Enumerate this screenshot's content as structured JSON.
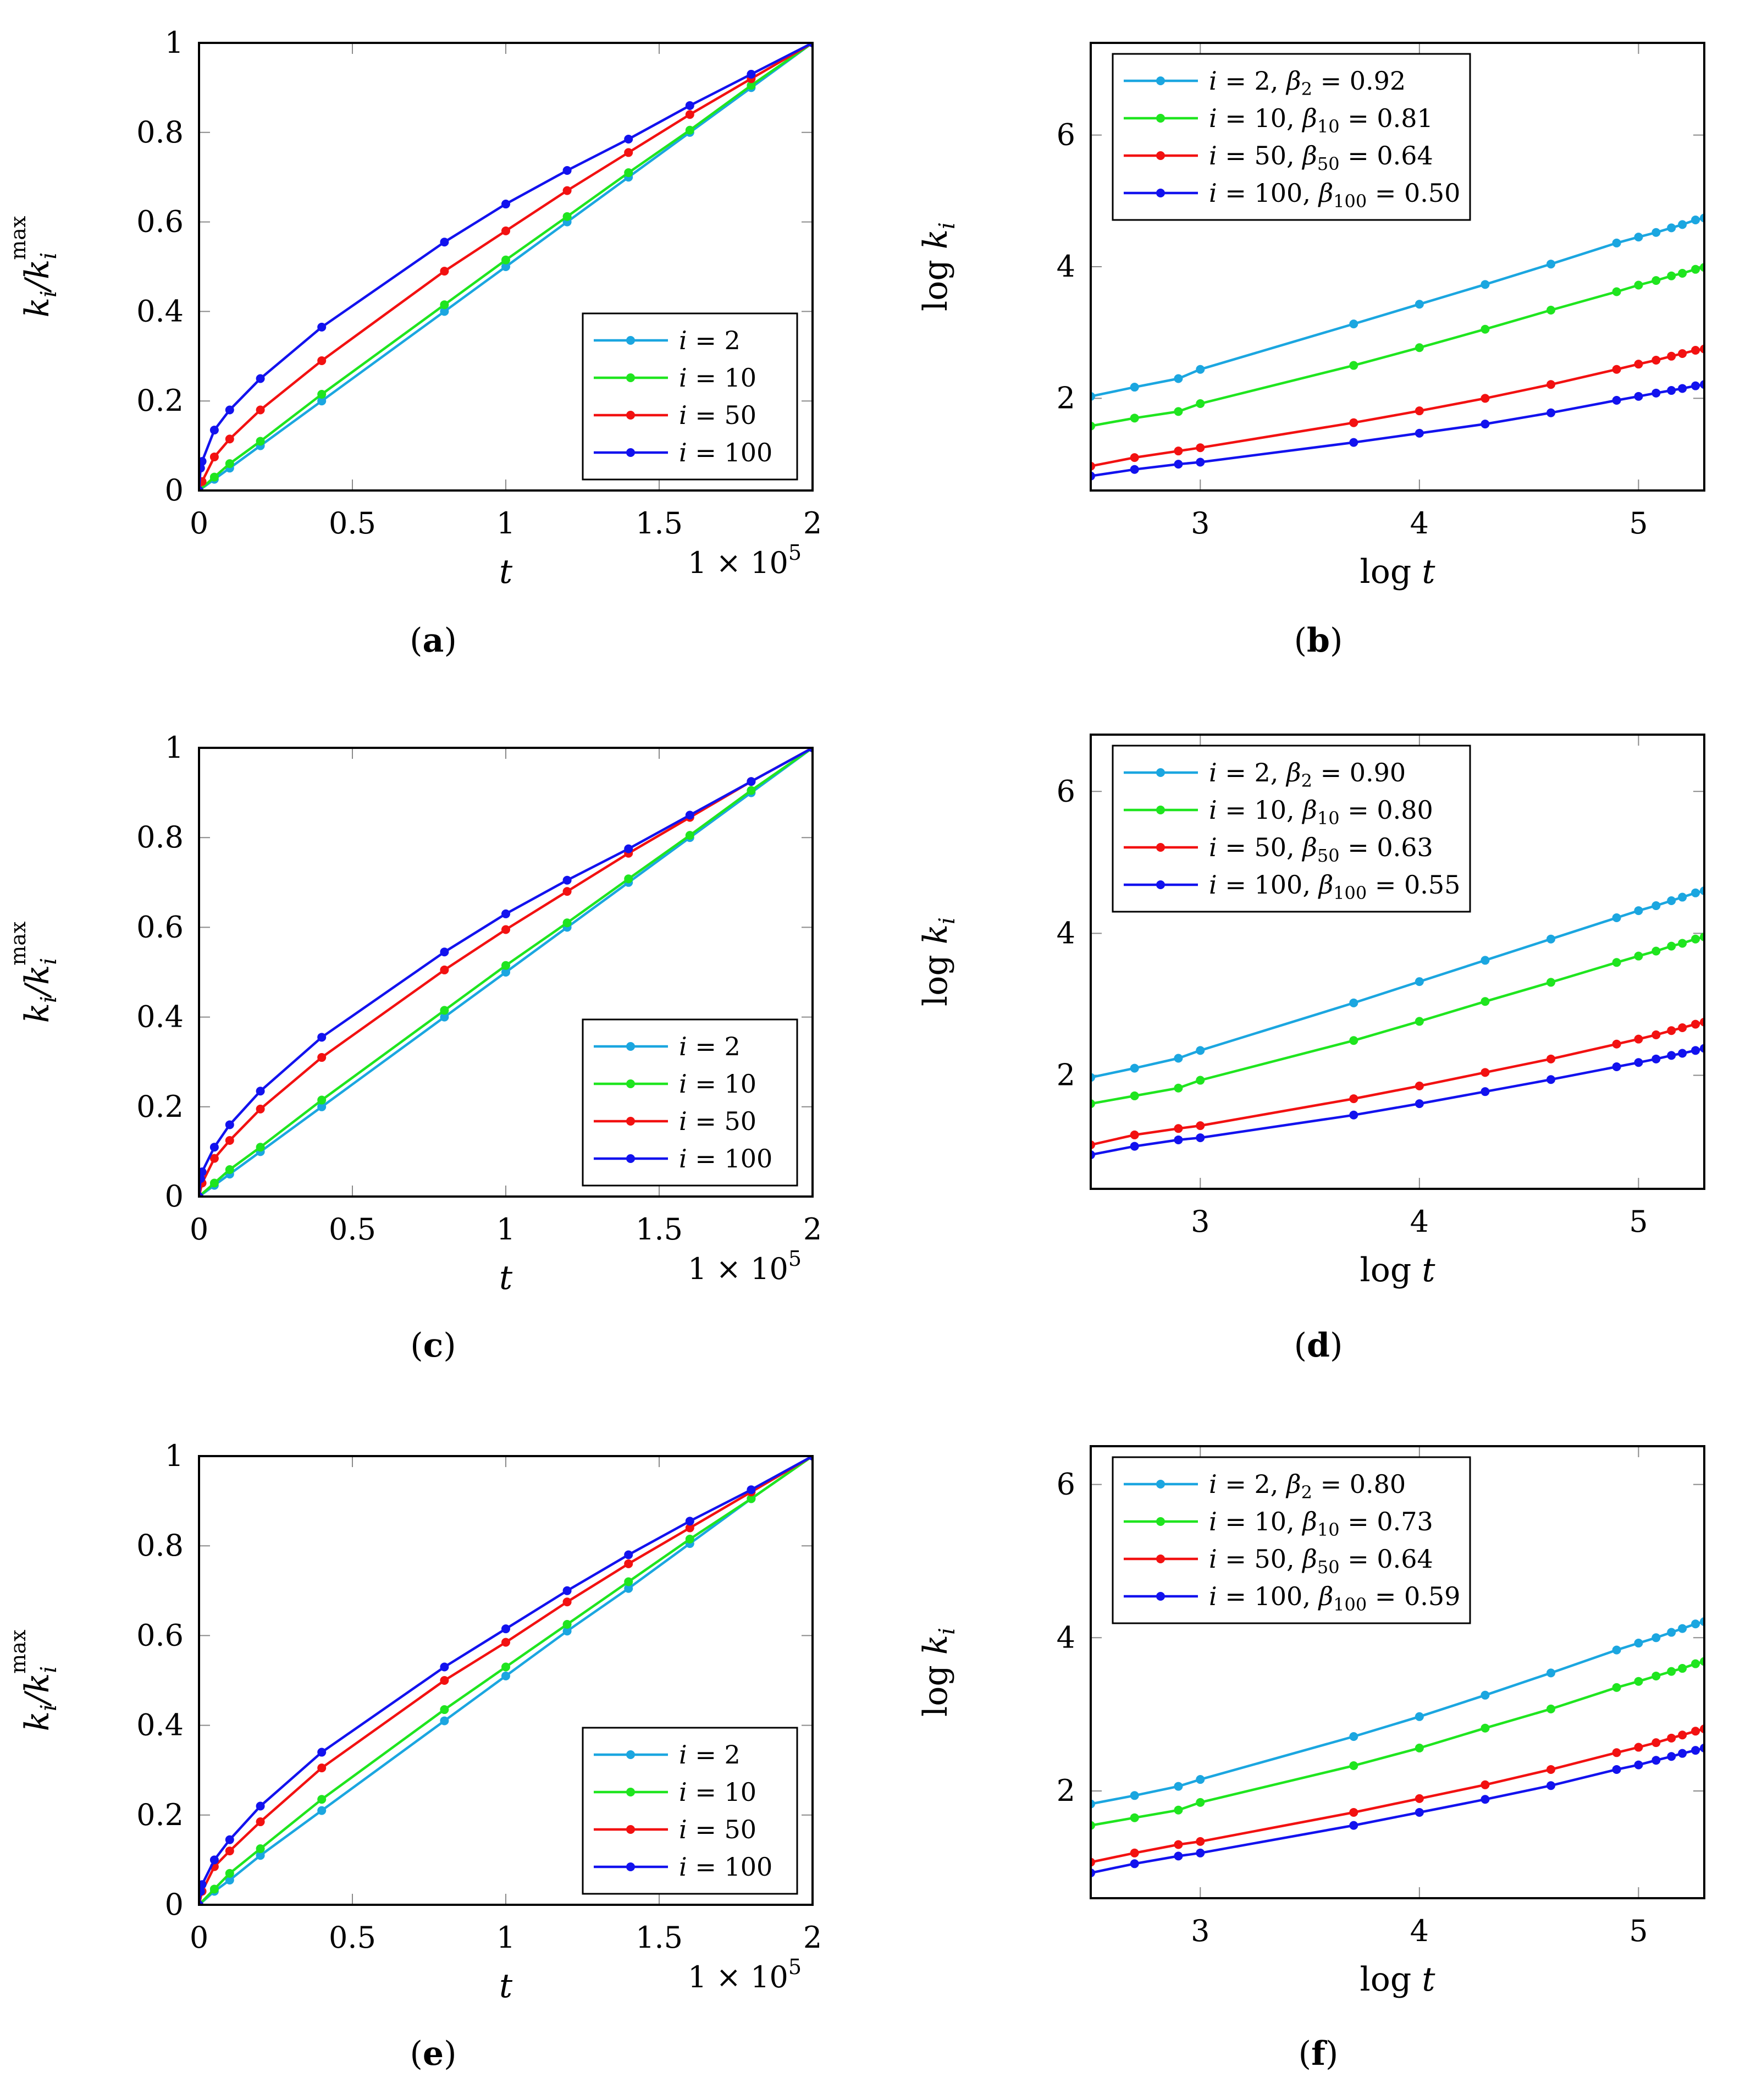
{
  "colors": {
    "i2": "#1ba6e0",
    "i10": "#1fe51f",
    "i50": "#f21111",
    "i100": "#1212ee"
  },
  "chart_data": [
    {
      "id": "a",
      "type": "line",
      "caption": "(a)",
      "xlabel": "t",
      "ylabel": "k_i/k_i^max",
      "sci_note": "1 × 10^5",
      "xlim": [
        0,
        2
      ],
      "ylim": [
        0,
        1
      ],
      "xticks": [
        0,
        0.5,
        1,
        1.5,
        2
      ],
      "xtick_labels": [
        "0",
        "0.5",
        "1",
        "1.5",
        "2"
      ],
      "yticks": [
        0,
        0.2,
        0.4,
        0.6,
        0.8,
        1
      ],
      "ytick_labels": [
        "0",
        "0.2",
        "0.4",
        "0.6",
        "0.8",
        "1"
      ],
      "legend_position": "lower-right",
      "series": [
        {
          "name": "i = 2",
          "color_key": "i2",
          "x": [
            0,
            0.05,
            0.1,
            0.2,
            0.4,
            0.8,
            1.0,
            1.2,
            1.4,
            1.6,
            1.8,
            2.0
          ],
          "y": [
            0,
            0.025,
            0.05,
            0.1,
            0.2,
            0.4,
            0.5,
            0.6,
            0.7,
            0.8,
            0.9,
            1.0
          ]
        },
        {
          "name": "i = 10",
          "color_key": "i10",
          "x": [
            0,
            0.05,
            0.1,
            0.2,
            0.4,
            0.8,
            1.0,
            1.2,
            1.4,
            1.6,
            1.8,
            2.0
          ],
          "y": [
            0,
            0.03,
            0.06,
            0.11,
            0.215,
            0.415,
            0.515,
            0.612,
            0.71,
            0.805,
            0.905,
            1.0
          ]
        },
        {
          "name": "i = 50",
          "color_key": "i50",
          "x": [
            0,
            0.01,
            0.05,
            0.1,
            0.2,
            0.4,
            0.8,
            1.0,
            1.2,
            1.4,
            1.6,
            1.8,
            2.0
          ],
          "y": [
            0,
            0.02,
            0.075,
            0.115,
            0.18,
            0.29,
            0.49,
            0.58,
            0.67,
            0.755,
            0.84,
            0.92,
            1.0
          ]
        },
        {
          "name": "i = 100",
          "color_key": "i100",
          "x": [
            0,
            0.005,
            0.01,
            0.05,
            0.1,
            0.2,
            0.4,
            0.8,
            1.0,
            1.2,
            1.4,
            1.6,
            1.8,
            2.0
          ],
          "y": [
            0,
            0.05,
            0.065,
            0.135,
            0.18,
            0.25,
            0.365,
            0.555,
            0.64,
            0.715,
            0.785,
            0.86,
            0.93,
            1.0
          ]
        }
      ]
    },
    {
      "id": "b",
      "type": "line",
      "caption": "(b)",
      "xlabel": "log t",
      "ylabel": "log k_i",
      "xlim": [
        2.5,
        5.3
      ],
      "ylim": [
        0.6,
        7.4
      ],
      "xticks": [
        3,
        4,
        5
      ],
      "xtick_labels": [
        "3",
        "4",
        "5"
      ],
      "yticks": [
        2,
        4,
        6
      ],
      "ytick_labels": [
        "2",
        "4",
        "6"
      ],
      "legend_position": "top-left",
      "series": [
        {
          "name": "i = 2, β2 = 0.92",
          "color_key": "i2",
          "x": [
            2.5,
            2.7,
            2.9,
            3.0,
            3.7,
            4.0,
            4.3,
            4.6,
            4.9,
            5.0,
            5.08,
            5.15,
            5.2,
            5.26,
            5.3
          ],
          "y": [
            2.03,
            2.17,
            2.3,
            2.44,
            3.13,
            3.43,
            3.73,
            4.04,
            4.36,
            4.45,
            4.52,
            4.59,
            4.64,
            4.71,
            4.74
          ]
        },
        {
          "name": "i = 10, β10 = 0.81",
          "color_key": "i10",
          "x": [
            2.5,
            2.7,
            2.9,
            3.0,
            3.7,
            4.0,
            4.3,
            4.6,
            4.9,
            5.0,
            5.08,
            5.15,
            5.2,
            5.26,
            5.3
          ],
          "y": [
            1.58,
            1.7,
            1.8,
            1.92,
            2.5,
            2.77,
            3.05,
            3.34,
            3.62,
            3.72,
            3.79,
            3.86,
            3.9,
            3.96,
            3.99
          ]
        },
        {
          "name": "i = 50, β50 = 0.64",
          "color_key": "i50",
          "x": [
            2.5,
            2.7,
            2.9,
            3.0,
            3.7,
            4.0,
            4.3,
            4.6,
            4.9,
            5.0,
            5.08,
            5.15,
            5.2,
            5.26,
            5.3
          ],
          "y": [
            0.97,
            1.1,
            1.2,
            1.25,
            1.63,
            1.81,
            2.0,
            2.21,
            2.44,
            2.52,
            2.58,
            2.64,
            2.68,
            2.73,
            2.75
          ]
        },
        {
          "name": "i = 100, β100 = 0.50",
          "color_key": "i100",
          "x": [
            2.5,
            2.7,
            2.9,
            3.0,
            3.7,
            4.0,
            4.3,
            4.6,
            4.9,
            5.0,
            5.08,
            5.15,
            5.2,
            5.26,
            5.3
          ],
          "y": [
            0.82,
            0.92,
            1.0,
            1.03,
            1.33,
            1.47,
            1.61,
            1.78,
            1.97,
            2.03,
            2.08,
            2.12,
            2.15,
            2.19,
            2.21
          ]
        }
      ]
    },
    {
      "id": "c",
      "type": "line",
      "caption": "(c)",
      "xlabel": "t",
      "ylabel": "k_i/k_i^max",
      "sci_note": "1 × 10^5",
      "xlim": [
        0,
        2
      ],
      "ylim": [
        0,
        1
      ],
      "xticks": [
        0,
        0.5,
        1,
        1.5,
        2
      ],
      "xtick_labels": [
        "0",
        "0.5",
        "1",
        "1.5",
        "2"
      ],
      "yticks": [
        0,
        0.2,
        0.4,
        0.6,
        0.8,
        1
      ],
      "ytick_labels": [
        "0",
        "0.2",
        "0.4",
        "0.6",
        "0.8",
        "1"
      ],
      "legend_position": "lower-right",
      "series": [
        {
          "name": "i = 2",
          "color_key": "i2",
          "x": [
            0,
            0.05,
            0.1,
            0.2,
            0.4,
            0.8,
            1.0,
            1.2,
            1.4,
            1.6,
            1.8,
            2.0
          ],
          "y": [
            0,
            0.025,
            0.05,
            0.1,
            0.2,
            0.4,
            0.5,
            0.6,
            0.7,
            0.8,
            0.9,
            1.0
          ]
        },
        {
          "name": "i = 10",
          "color_key": "i10",
          "x": [
            0,
            0.05,
            0.1,
            0.2,
            0.4,
            0.8,
            1.0,
            1.2,
            1.4,
            1.6,
            1.8,
            2.0
          ],
          "y": [
            0,
            0.03,
            0.06,
            0.11,
            0.215,
            0.415,
            0.515,
            0.61,
            0.708,
            0.805,
            0.905,
            1.0
          ]
        },
        {
          "name": "i = 50",
          "color_key": "i50",
          "x": [
            0,
            0.01,
            0.05,
            0.1,
            0.2,
            0.4,
            0.8,
            1.0,
            1.2,
            1.4,
            1.6,
            1.8,
            2.0
          ],
          "y": [
            0,
            0.03,
            0.085,
            0.125,
            0.195,
            0.31,
            0.505,
            0.595,
            0.68,
            0.765,
            0.845,
            0.925,
            1.0
          ]
        },
        {
          "name": "i = 100",
          "color_key": "i100",
          "x": [
            0,
            0.005,
            0.01,
            0.05,
            0.1,
            0.2,
            0.4,
            0.8,
            1.0,
            1.2,
            1.4,
            1.6,
            1.8,
            2.0
          ],
          "y": [
            0,
            0.04,
            0.055,
            0.11,
            0.16,
            0.235,
            0.355,
            0.545,
            0.63,
            0.705,
            0.775,
            0.85,
            0.925,
            1.0
          ]
        }
      ]
    },
    {
      "id": "d",
      "type": "line",
      "caption": "(d)",
      "xlabel": "log t",
      "ylabel": "log k_i",
      "xlim": [
        2.5,
        5.3
      ],
      "ylim": [
        0.4,
        6.8
      ],
      "xticks": [
        3,
        4,
        5
      ],
      "xtick_labels": [
        "3",
        "4",
        "5"
      ],
      "yticks": [
        2,
        4,
        6
      ],
      "ytick_labels": [
        "2",
        "4",
        "6"
      ],
      "legend_position": "top-left",
      "series": [
        {
          "name": "i = 2, β2 = 0.90",
          "color_key": "i2",
          "x": [
            2.5,
            2.7,
            2.9,
            3.0,
            3.7,
            4.0,
            4.3,
            4.6,
            4.9,
            5.0,
            5.08,
            5.15,
            5.2,
            5.26,
            5.3
          ],
          "y": [
            1.97,
            2.1,
            2.24,
            2.35,
            3.02,
            3.32,
            3.62,
            3.92,
            4.22,
            4.32,
            4.39,
            4.46,
            4.51,
            4.57,
            4.6
          ]
        },
        {
          "name": "i = 10, β10 = 0.80",
          "color_key": "i10",
          "x": [
            2.5,
            2.7,
            2.9,
            3.0,
            3.7,
            4.0,
            4.3,
            4.6,
            4.9,
            5.0,
            5.08,
            5.15,
            5.2,
            5.26,
            5.3
          ],
          "y": [
            1.6,
            1.71,
            1.82,
            1.93,
            2.49,
            2.76,
            3.04,
            3.31,
            3.59,
            3.68,
            3.75,
            3.82,
            3.86,
            3.92,
            3.95
          ]
        },
        {
          "name": "i = 50, β50 = 0.63",
          "color_key": "i50",
          "x": [
            2.5,
            2.7,
            2.9,
            3.0,
            3.7,
            4.0,
            4.3,
            4.6,
            4.9,
            5.0,
            5.08,
            5.15,
            5.2,
            5.26,
            5.3
          ],
          "y": [
            1.02,
            1.16,
            1.25,
            1.29,
            1.67,
            1.85,
            2.04,
            2.23,
            2.44,
            2.51,
            2.57,
            2.63,
            2.67,
            2.72,
            2.75
          ]
        },
        {
          "name": "i = 100, β100 = 0.55",
          "color_key": "i100",
          "x": [
            2.5,
            2.7,
            2.9,
            3.0,
            3.7,
            4.0,
            4.3,
            4.6,
            4.9,
            5.0,
            5.08,
            5.15,
            5.2,
            5.26,
            5.3
          ],
          "y": [
            0.88,
            1.0,
            1.09,
            1.12,
            1.44,
            1.6,
            1.77,
            1.94,
            2.12,
            2.18,
            2.23,
            2.28,
            2.31,
            2.35,
            2.38
          ]
        }
      ]
    },
    {
      "id": "e",
      "type": "line",
      "caption": "(e)",
      "xlabel": "t",
      "ylabel": "k_i/k_i^max",
      "sci_note": "1 × 10^5",
      "xlim": [
        0,
        2
      ],
      "ylim": [
        0,
        1
      ],
      "xticks": [
        0,
        0.5,
        1,
        1.5,
        2
      ],
      "xtick_labels": [
        "0",
        "0.5",
        "1",
        "1.5",
        "2"
      ],
      "yticks": [
        0,
        0.2,
        0.4,
        0.6,
        0.8,
        1
      ],
      "ytick_labels": [
        "0",
        "0.2",
        "0.4",
        "0.6",
        "0.8",
        "1"
      ],
      "legend_position": "lower-right",
      "series": [
        {
          "name": "i = 2",
          "color_key": "i2",
          "x": [
            0,
            0.05,
            0.1,
            0.2,
            0.4,
            0.8,
            1.0,
            1.2,
            1.4,
            1.6,
            1.8,
            2.0
          ],
          "y": [
            0,
            0.03,
            0.055,
            0.11,
            0.21,
            0.41,
            0.51,
            0.61,
            0.705,
            0.805,
            0.905,
            1.0
          ]
        },
        {
          "name": "i = 10",
          "color_key": "i10",
          "x": [
            0,
            0.05,
            0.1,
            0.2,
            0.4,
            0.8,
            1.0,
            1.2,
            1.4,
            1.6,
            1.8,
            2.0
          ],
          "y": [
            0,
            0.035,
            0.07,
            0.125,
            0.235,
            0.435,
            0.53,
            0.625,
            0.72,
            0.815,
            0.905,
            1.0
          ]
        },
        {
          "name": "i = 50",
          "color_key": "i50",
          "x": [
            0,
            0.01,
            0.05,
            0.1,
            0.2,
            0.4,
            0.8,
            1.0,
            1.2,
            1.4,
            1.6,
            1.8,
            2.0
          ],
          "y": [
            0,
            0.03,
            0.085,
            0.12,
            0.185,
            0.305,
            0.5,
            0.585,
            0.675,
            0.76,
            0.84,
            0.92,
            1.0
          ]
        },
        {
          "name": "i = 100",
          "color_key": "i100",
          "x": [
            0,
            0.005,
            0.01,
            0.05,
            0.1,
            0.2,
            0.4,
            0.8,
            1.0,
            1.2,
            1.4,
            1.6,
            1.8,
            2.0
          ],
          "y": [
            0,
            0.03,
            0.045,
            0.1,
            0.145,
            0.22,
            0.34,
            0.53,
            0.615,
            0.7,
            0.78,
            0.855,
            0.925,
            1.0
          ]
        }
      ]
    },
    {
      "id": "f",
      "type": "line",
      "caption": "(f)",
      "xlabel": "log t",
      "ylabel": "log k_i",
      "xlim": [
        2.5,
        5.3
      ],
      "ylim": [
        0.6,
        6.5
      ],
      "xticks": [
        3,
        4,
        5
      ],
      "xtick_labels": [
        "3",
        "4",
        "5"
      ],
      "yticks": [
        2,
        4,
        6
      ],
      "ytick_labels": [
        "2",
        "4",
        "6"
      ],
      "legend_position": "top-left",
      "series": [
        {
          "name": "i = 2, β2 = 0.80",
          "color_key": "i2",
          "x": [
            2.5,
            2.7,
            2.9,
            3.0,
            3.7,
            4.0,
            4.3,
            4.6,
            4.9,
            5.0,
            5.08,
            5.15,
            5.2,
            5.26,
            5.3
          ],
          "y": [
            1.83,
            1.94,
            2.06,
            2.15,
            2.71,
            2.97,
            3.25,
            3.54,
            3.84,
            3.93,
            4.0,
            4.07,
            4.12,
            4.18,
            4.21
          ]
        },
        {
          "name": "i = 10, β10 = 0.73",
          "color_key": "i10",
          "x": [
            2.5,
            2.7,
            2.9,
            3.0,
            3.7,
            4.0,
            4.3,
            4.6,
            4.9,
            5.0,
            5.08,
            5.15,
            5.2,
            5.26,
            5.3
          ],
          "y": [
            1.55,
            1.65,
            1.75,
            1.85,
            2.33,
            2.56,
            2.82,
            3.07,
            3.35,
            3.43,
            3.5,
            3.56,
            3.6,
            3.66,
            3.69
          ]
        },
        {
          "name": "i = 50, β50 = 0.64",
          "color_key": "i50",
          "x": [
            2.5,
            2.7,
            2.9,
            3.0,
            3.7,
            4.0,
            4.3,
            4.6,
            4.9,
            5.0,
            5.08,
            5.15,
            5.2,
            5.26,
            5.3
          ],
          "y": [
            1.07,
            1.19,
            1.3,
            1.34,
            1.72,
            1.9,
            2.08,
            2.28,
            2.5,
            2.57,
            2.63,
            2.69,
            2.73,
            2.78,
            2.81
          ]
        },
        {
          "name": "i = 100, β100 = 0.59",
          "color_key": "i100",
          "x": [
            2.5,
            2.7,
            2.9,
            3.0,
            3.7,
            4.0,
            4.3,
            4.6,
            4.9,
            5.0,
            5.08,
            5.15,
            5.2,
            5.26,
            5.3
          ],
          "y": [
            0.93,
            1.05,
            1.15,
            1.19,
            1.55,
            1.72,
            1.89,
            2.07,
            2.28,
            2.34,
            2.4,
            2.45,
            2.49,
            2.53,
            2.56
          ]
        }
      ]
    }
  ]
}
